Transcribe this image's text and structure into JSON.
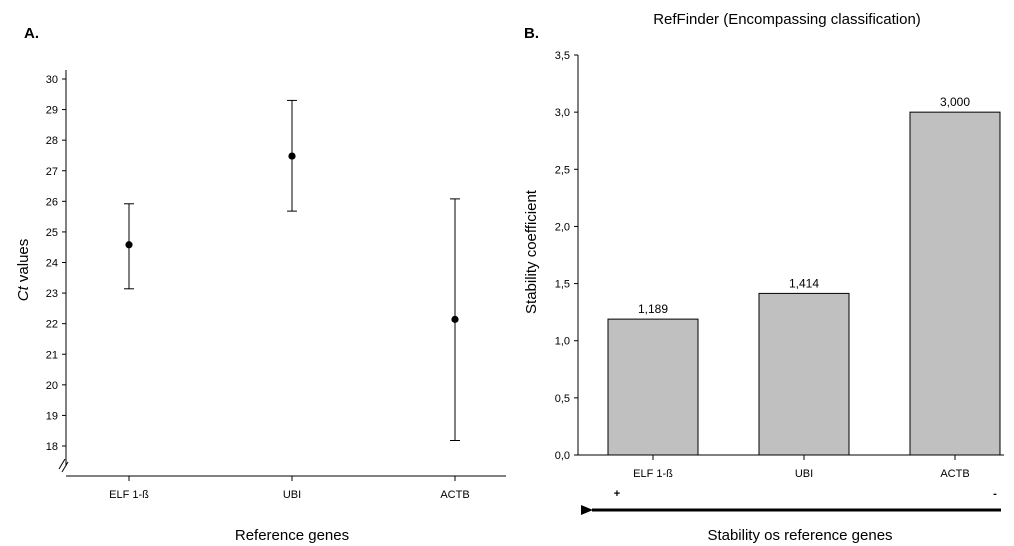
{
  "panels": {
    "a": {
      "letter": "A."
    },
    "b": {
      "letter": "B."
    }
  },
  "chart_data": [
    {
      "type": "scatter",
      "error_bars": true,
      "categories": [
        "ELF 1-ß",
        "UBI",
        "ACTB"
      ],
      "means": [
        24.58,
        27.48,
        22.14
      ],
      "upper": [
        25.92,
        29.3,
        26.08
      ],
      "lower": [
        23.14,
        25.68,
        18.18
      ],
      "title": "",
      "xlabel": "Reference genes",
      "ylabel": "Ct values",
      "ylabel_italic_part": "Ct",
      "ylabel_rest": " values",
      "ylim": [
        18,
        30
      ],
      "yticks": [
        "18",
        "19",
        "20",
        "21",
        "22",
        "23",
        "24",
        "25",
        "26",
        "27",
        "28",
        "29",
        "30"
      ],
      "axis_break": true,
      "grid": false,
      "marker_color": "#000000"
    },
    {
      "type": "bar",
      "categories": [
        "ELF 1-ß",
        "UBI",
        "ACTB"
      ],
      "values": [
        1.189,
        1.414,
        3.0
      ],
      "value_labels": [
        "1,189",
        "1,414",
        "3,000"
      ],
      "title": "RefFinder (Encompassing classification)",
      "xlabel": "Stability os reference genes",
      "ylabel": "Stability coefficient",
      "ylim": [
        0,
        3.5
      ],
      "yticks": [
        "0,0",
        "0,5",
        "1,0",
        "1,5",
        "2,0",
        "2,5",
        "3,0",
        "3,5"
      ],
      "grid": false,
      "bar_color": "#c0c0c0",
      "stability_arrow": {
        "left_sign": "+",
        "right_sign": "-",
        "direction": "right-to-left"
      }
    }
  ]
}
